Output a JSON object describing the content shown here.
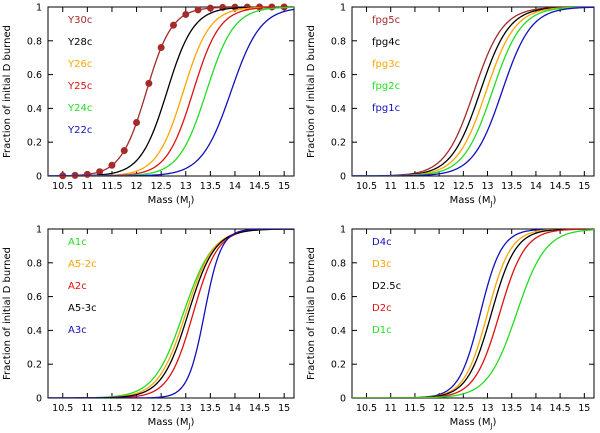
{
  "chart_data": [
    {
      "type": "line",
      "panel": "top-left",
      "xlabel_main": "Mass (M",
      "xlabel_sub": "J",
      "xlabel_end": ")",
      "ylabel": "Fraction of initial D burned",
      "xlim": [
        10.2,
        15.2
      ],
      "ylim": [
        0,
        1
      ],
      "xticks": [
        "10.5",
        "11",
        "11.5",
        "12",
        "12.5",
        "13",
        "13.5",
        "14",
        "14.5",
        "15"
      ],
      "yticks": [
        "0",
        "0.2",
        "0.4",
        "0.6",
        "0.8",
        "1"
      ],
      "series": [
        {
          "name": "Y30c",
          "color": "#a52a2a",
          "mid": 12.2,
          "width": 0.26,
          "markers": true
        },
        {
          "name": "Y28c",
          "color": "#000000",
          "mid": 12.62,
          "width": 0.27
        },
        {
          "name": "Y26c",
          "color": "#ffa500",
          "mid": 12.95,
          "width": 0.27
        },
        {
          "name": "Y25c",
          "color": "#dd1111",
          "mid": 13.15,
          "width": 0.27
        },
        {
          "name": "Y24c",
          "color": "#22dd22",
          "mid": 13.42,
          "width": 0.28
        },
        {
          "name": "Y22c",
          "color": "#1111bb",
          "mid": 13.92,
          "width": 0.3
        }
      ],
      "marker_x": [
        10.5,
        10.75,
        11,
        11.25,
        11.5,
        11.75,
        12,
        12.25,
        12.5,
        12.75,
        13,
        13.25,
        13.5,
        13.75,
        14,
        14.25,
        14.5,
        14.75,
        15
      ]
    },
    {
      "type": "line",
      "panel": "top-right",
      "xlabel_main": "Mass (M",
      "xlabel_sub": "J",
      "xlabel_end": ")",
      "ylabel": "Fraction of initial D burned",
      "xlim": [
        10.2,
        15.2
      ],
      "ylim": [
        0,
        1
      ],
      "xticks": [
        "10.5",
        "11",
        "11.5",
        "12",
        "12.5",
        "13",
        "13.5",
        "14",
        "14.5",
        "15"
      ],
      "yticks": [
        "0",
        "0.2",
        "0.4",
        "0.6",
        "0.8",
        "1"
      ],
      "series": [
        {
          "name": "fpg5c",
          "color": "#a52a2a",
          "mid": 12.72,
          "width": 0.3
        },
        {
          "name": "fpg4c",
          "color": "#000000",
          "mid": 12.85,
          "width": 0.3
        },
        {
          "name": "fpg3c",
          "color": "#ffa500",
          "mid": 12.97,
          "width": 0.3
        },
        {
          "name": "fpg2c",
          "color": "#22dd22",
          "mid": 13.1,
          "width": 0.3
        },
        {
          "name": "fpg1c",
          "color": "#1111bb",
          "mid": 13.3,
          "width": 0.3
        }
      ]
    },
    {
      "type": "line",
      "panel": "bottom-left",
      "xlabel_main": "Mass (M",
      "xlabel_sub": "J",
      "xlabel_end": ")",
      "ylabel": "Fraction of initial D burned",
      "xlim": [
        10.2,
        15.2
      ],
      "ylim": [
        0,
        1
      ],
      "xticks": [
        "10.5",
        "11",
        "11.5",
        "12",
        "12.5",
        "13",
        "13.5",
        "14",
        "14.5",
        "15"
      ],
      "yticks": [
        "0",
        "0.2",
        "0.4",
        "0.6",
        "0.8",
        "1"
      ],
      "series": [
        {
          "name": "A1c",
          "color": "#22dd22",
          "mid": 12.95,
          "width": 0.3
        },
        {
          "name": "A5-2c",
          "color": "#ffa500",
          "mid": 13.0,
          "width": 0.28
        },
        {
          "name": "A2c",
          "color": "#dd1111",
          "mid": 13.15,
          "width": 0.25
        },
        {
          "name": "A5-3c",
          "color": "#000000",
          "mid": 13.05,
          "width": 0.27
        },
        {
          "name": "A3c",
          "color": "#1111bb",
          "mid": 13.38,
          "width": 0.17
        }
      ]
    },
    {
      "type": "line",
      "panel": "bottom-right",
      "xlabel_main": "Mass (M",
      "xlabel_sub": "J",
      "xlabel_end": ")",
      "ylabel": "Fraction of initial D burned",
      "xlim": [
        10.2,
        15.2
      ],
      "ylim": [
        0,
        1
      ],
      "xticks": [
        "10.5",
        "11",
        "11.5",
        "12",
        "12.5",
        "13",
        "13.5",
        "14",
        "14.5",
        "15"
      ],
      "yticks": [
        "0",
        "0.2",
        "0.4",
        "0.6",
        "0.8",
        "1"
      ],
      "series": [
        {
          "name": "D4c",
          "color": "#1111bb",
          "mid": 12.85,
          "width": 0.22
        },
        {
          "name": "D3c",
          "color": "#ffa500",
          "mid": 13.0,
          "width": 0.24
        },
        {
          "name": "D2.5c",
          "color": "#000000",
          "mid": 13.08,
          "width": 0.25
        },
        {
          "name": "D2c",
          "color": "#dd1111",
          "mid": 13.25,
          "width": 0.26
        },
        {
          "name": "D1c",
          "color": "#22dd22",
          "mid": 13.6,
          "width": 0.3
        }
      ]
    }
  ]
}
